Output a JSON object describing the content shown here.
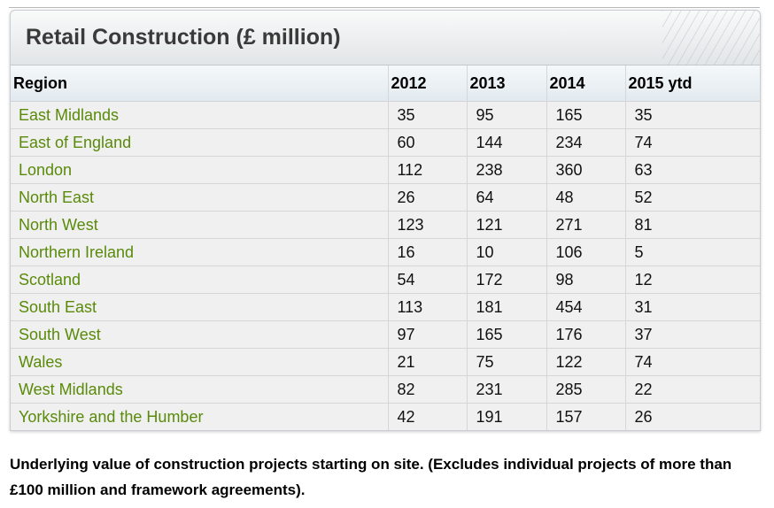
{
  "title": "Retail Construction (£ million)",
  "columns": [
    "Region",
    "2012",
    "2013",
    "2014",
    "2015 ytd"
  ],
  "rows": [
    {
      "region": "East Midlands",
      "values": [
        "35",
        "95",
        "165",
        "35"
      ]
    },
    {
      "region": "East of England",
      "values": [
        "60",
        "144",
        "234",
        "74"
      ]
    },
    {
      "region": "London",
      "values": [
        "112",
        "238",
        "360",
        "63"
      ]
    },
    {
      "region": "North East",
      "values": [
        "26",
        "64",
        "48",
        "52"
      ]
    },
    {
      "region": "North West",
      "values": [
        "123",
        "121",
        "271",
        "81"
      ]
    },
    {
      "region": "Northern Ireland",
      "values": [
        "16",
        "10",
        "106",
        "5"
      ]
    },
    {
      "region": "Scotland",
      "values": [
        "54",
        "172",
        "98",
        "12"
      ]
    },
    {
      "region": "South East",
      "values": [
        "113",
        "181",
        "454",
        "31"
      ]
    },
    {
      "region": "South West",
      "values": [
        "97",
        "165",
        "176",
        "37"
      ]
    },
    {
      "region": "Wales",
      "values": [
        "21",
        "75",
        "122",
        "74"
      ]
    },
    {
      "region": "West Midlands",
      "values": [
        "82",
        "231",
        "285",
        "22"
      ]
    },
    {
      "region": "Yorkshire and the Humber",
      "values": [
        "42",
        "191",
        "157",
        "26"
      ]
    }
  ],
  "footnote": "Underlying value of construction projects starting on site. (Excludes individual projects of more than £100 million and framework agreements).",
  "colors": {
    "region_link": "#5a8a0a",
    "title": "#3a3a3a"
  }
}
